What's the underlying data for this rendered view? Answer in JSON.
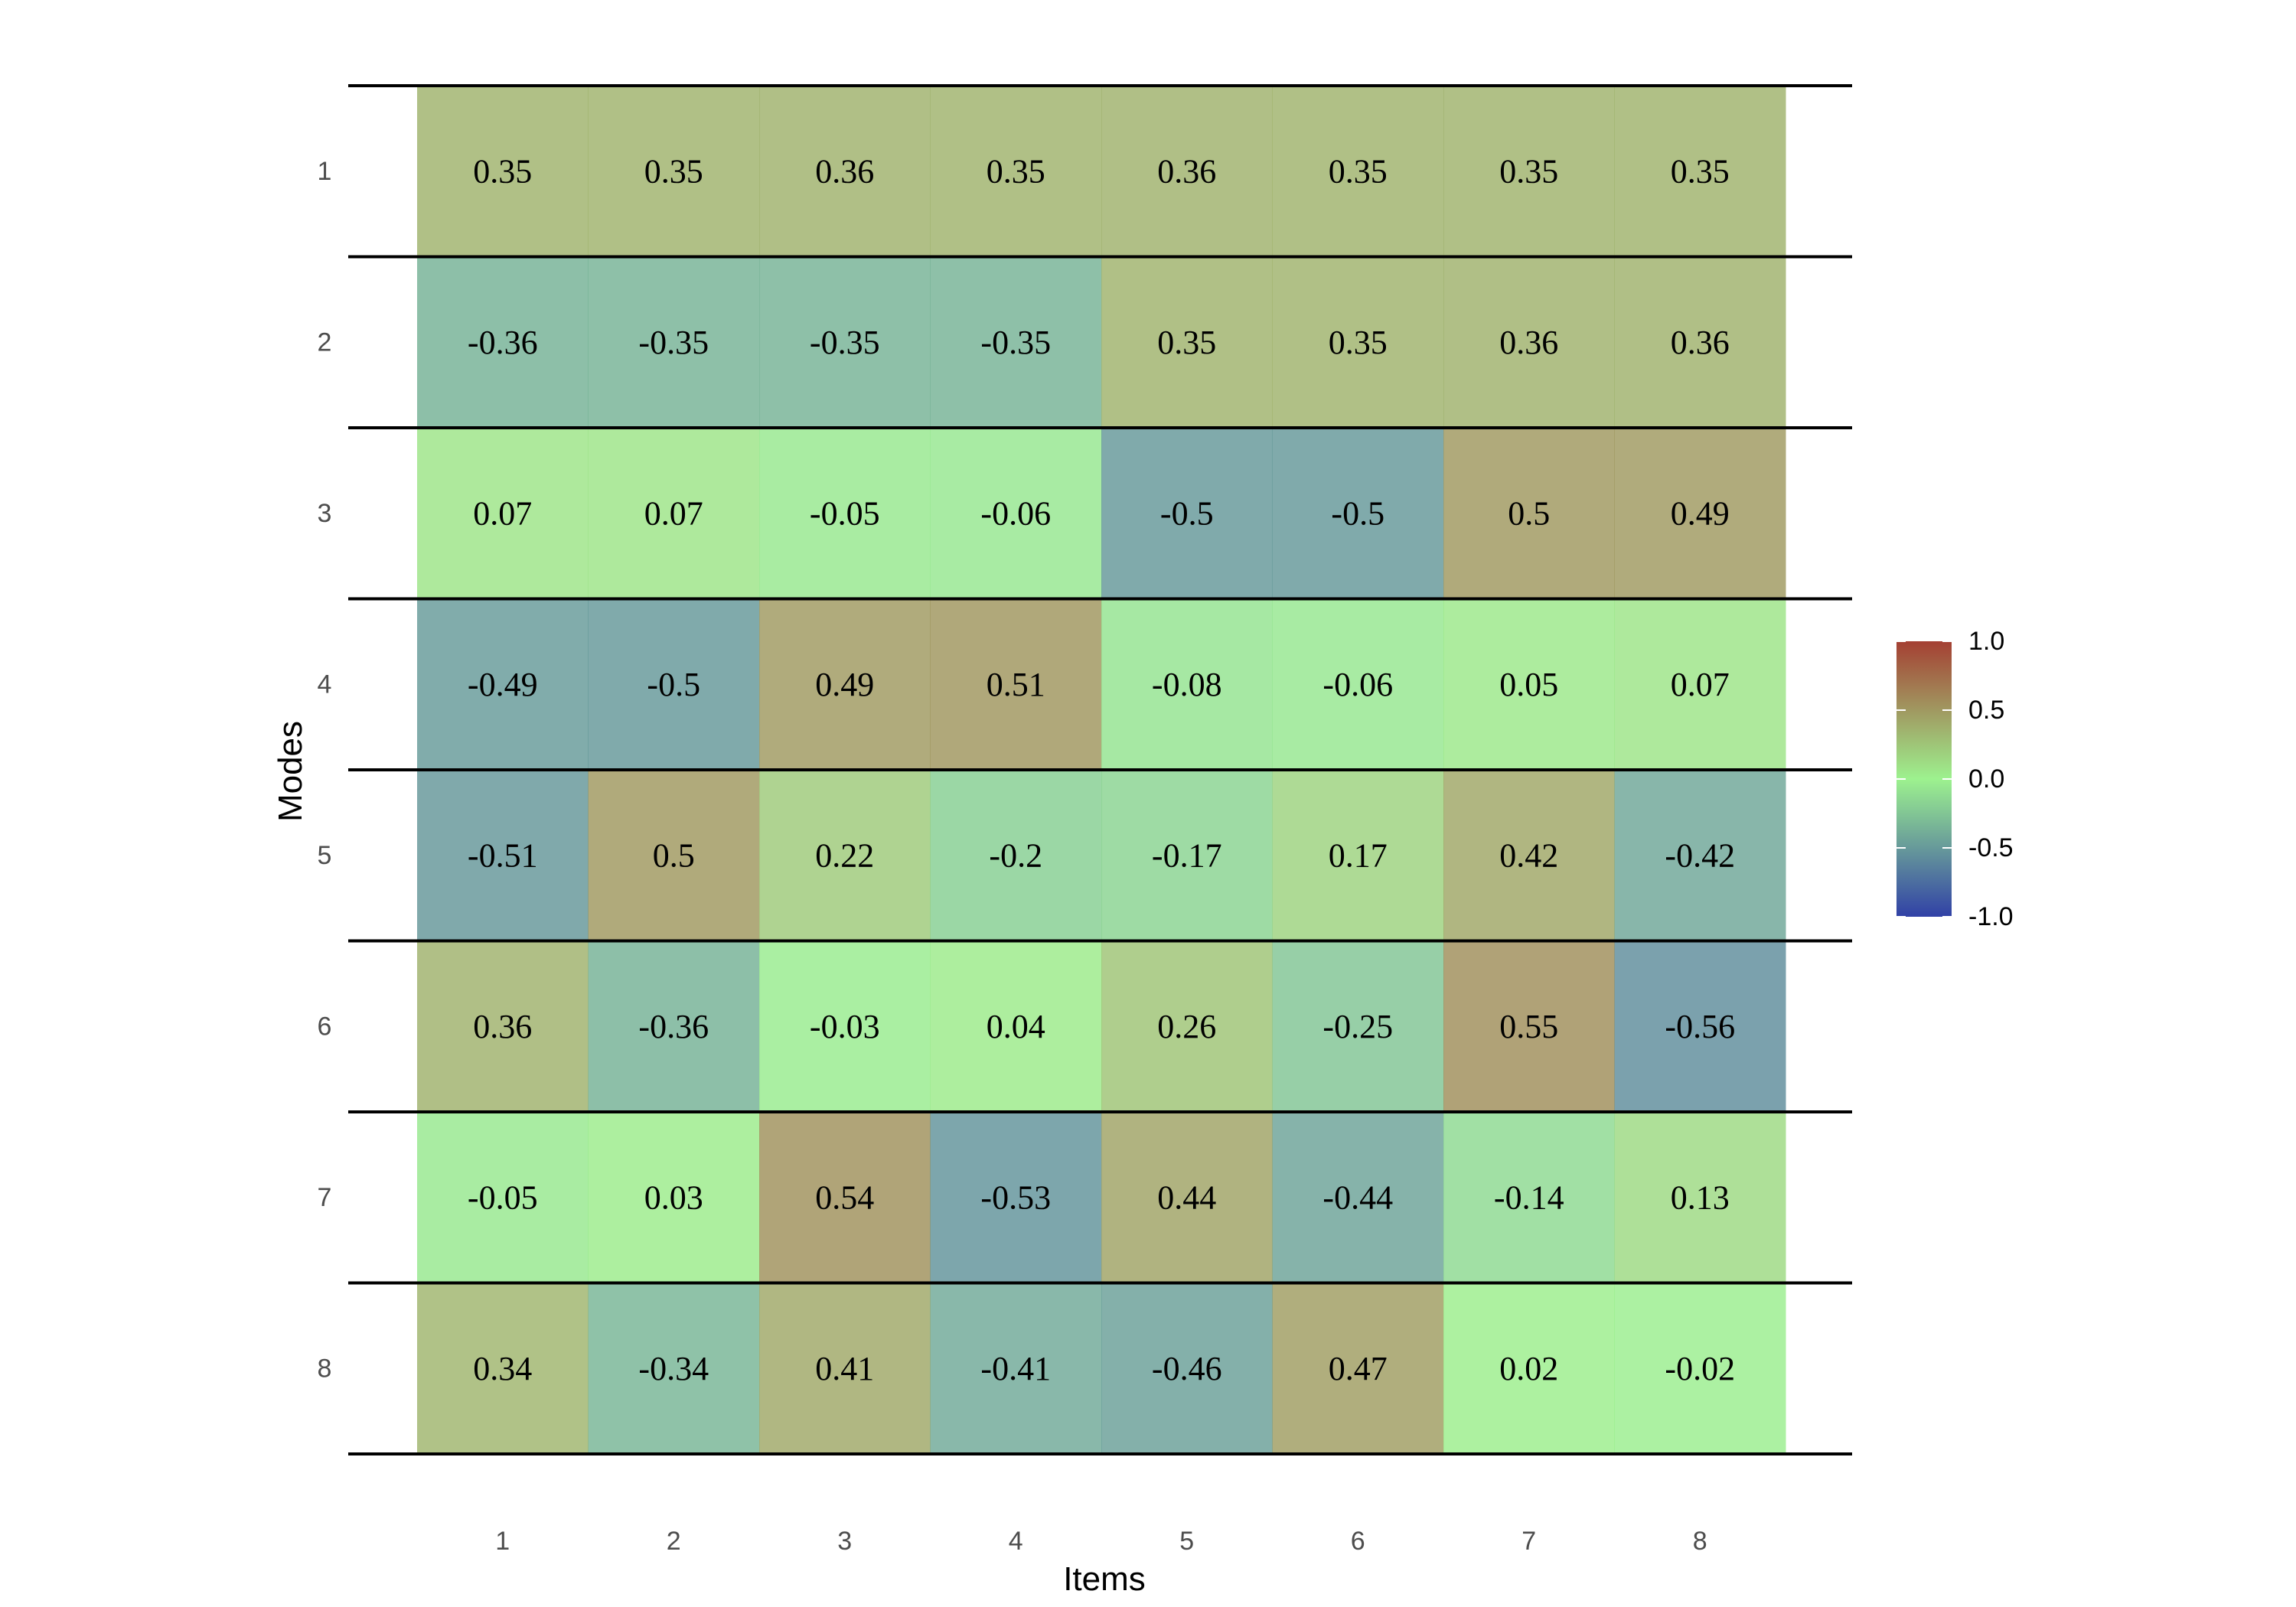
{
  "chart_data": {
    "type": "heatmap",
    "xlabel": "Items",
    "ylabel": "Modes",
    "x_categories": [
      "1",
      "2",
      "3",
      "4",
      "5",
      "6",
      "7",
      "8"
    ],
    "y_categories": [
      "1",
      "2",
      "3",
      "4",
      "5",
      "6",
      "7",
      "8"
    ],
    "values": [
      [
        0.35,
        0.35,
        0.36,
        0.35,
        0.36,
        0.35,
        0.35,
        0.35
      ],
      [
        -0.36,
        -0.35,
        -0.35,
        -0.35,
        0.35,
        0.35,
        0.36,
        0.36
      ],
      [
        0.07,
        0.07,
        -0.05,
        -0.06,
        -0.5,
        -0.5,
        0.5,
        0.49
      ],
      [
        -0.49,
        -0.5,
        0.49,
        0.51,
        -0.08,
        -0.06,
        0.05,
        0.07
      ],
      [
        -0.51,
        0.5,
        0.22,
        -0.2,
        -0.17,
        0.17,
        0.42,
        -0.42
      ],
      [
        0.36,
        -0.36,
        -0.03,
        0.04,
        0.26,
        -0.25,
        0.55,
        -0.56
      ],
      [
        -0.05,
        0.03,
        0.54,
        -0.53,
        0.44,
        -0.44,
        -0.14,
        0.13
      ],
      [
        0.34,
        -0.34,
        0.41,
        -0.41,
        -0.46,
        0.47,
        0.02,
        -0.02
      ]
    ],
    "value_range": [
      -1,
      1
    ],
    "colorscale": {
      "low": "#1a2c9c",
      "mid": "#92f082",
      "high": "#9a2a1c"
    },
    "cell_opacity": 0.75,
    "row_separator_color": "#000000",
    "legend": {
      "position": "right",
      "ticks": [
        "1.0",
        "0.5",
        "0.0",
        "-0.5",
        "-1.0"
      ],
      "tick_values": [
        1,
        0.5,
        0,
        -0.5,
        -1
      ]
    },
    "grid": false
  }
}
